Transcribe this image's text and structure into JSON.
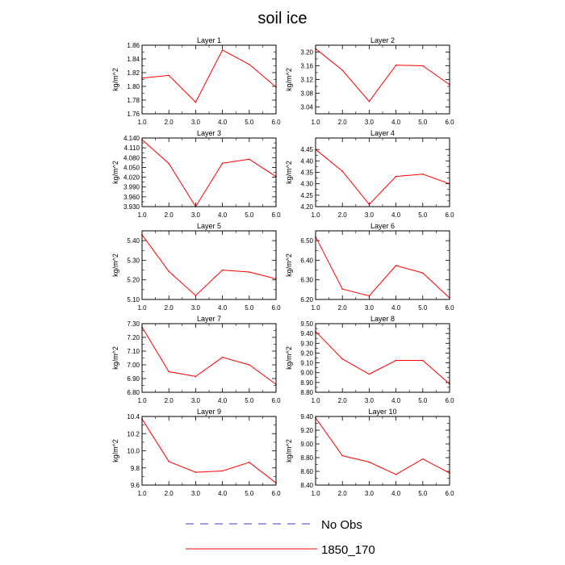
{
  "figure": {
    "title": "soil ice"
  },
  "legend": {
    "items": [
      {
        "label": "No Obs",
        "color": "#3b3bbf",
        "dashed": true
      },
      {
        "label": "1850_170",
        "color": "#ff0000",
        "dashed": false
      }
    ]
  },
  "chart_data": [
    {
      "type": "line",
      "title": "Layer 1",
      "ylabel": "kg/m^2",
      "x": [
        1.0,
        2.0,
        3.0,
        4.0,
        5.0,
        6.0
      ],
      "xlim": [
        1.0,
        6.0
      ],
      "xticks": [
        "1.0",
        "2.0",
        "3.0",
        "4.0",
        "5.0",
        "6.0"
      ],
      "ylim": [
        1.76,
        1.86
      ],
      "yticks": [
        "1.76",
        "1.78",
        "1.80",
        "1.82",
        "1.84",
        "1.86"
      ],
      "series": [
        {
          "name": "1850_170",
          "color": "#ff0000",
          "values": [
            1.812,
            1.816,
            1.777,
            1.853,
            1.832,
            1.799
          ]
        }
      ]
    },
    {
      "type": "line",
      "title": "Layer 2",
      "ylabel": "kg/m^2",
      "x": [
        1.0,
        2.0,
        3.0,
        4.0,
        5.0,
        6.0
      ],
      "xlim": [
        1.0,
        6.0
      ],
      "xticks": [
        "1.0",
        "2.0",
        "3.0",
        "4.0",
        "5.0",
        "6.0"
      ],
      "ylim": [
        3.02,
        3.22
      ],
      "yticks": [
        "3.04",
        "3.08",
        "3.12",
        "3.16",
        "3.20"
      ],
      "series": [
        {
          "name": "1850_170",
          "color": "#ff0000",
          "values": [
            3.21,
            3.147,
            3.056,
            3.162,
            3.16,
            3.105
          ]
        }
      ]
    },
    {
      "type": "line",
      "title": "Layer 3",
      "ylabel": "kg/m^2",
      "x": [
        1.0,
        2.0,
        3.0,
        4.0,
        5.0,
        6.0
      ],
      "xlim": [
        1.0,
        6.0
      ],
      "xticks": [
        "1.0",
        "2.0",
        "3.0",
        "4.0",
        "5.0",
        "6.0"
      ],
      "ylim": [
        3.93,
        4.14
      ],
      "yticks": [
        "3.930",
        "3.960",
        "3.990",
        "4.020",
        "4.050",
        "4.080",
        "4.110",
        "4.140"
      ],
      "series": [
        {
          "name": "1850_170",
          "color": "#ff0000",
          "values": [
            4.135,
            4.062,
            3.93,
            4.063,
            4.075,
            4.022
          ]
        }
      ]
    },
    {
      "type": "line",
      "title": "Layer 4",
      "ylabel": "kg/m^2",
      "x": [
        1.0,
        2.0,
        3.0,
        4.0,
        5.0,
        6.0
      ],
      "xlim": [
        1.0,
        6.0
      ],
      "xticks": [
        "1.0",
        "2.0",
        "3.0",
        "4.0",
        "5.0",
        "6.0"
      ],
      "ylim": [
        4.2,
        4.5
      ],
      "yticks": [
        "4.20",
        "4.25",
        "4.30",
        "4.35",
        "4.40",
        "4.45"
      ],
      "series": [
        {
          "name": "1850_170",
          "color": "#ff0000",
          "values": [
            4.45,
            4.355,
            4.21,
            4.332,
            4.342,
            4.3
          ]
        }
      ]
    },
    {
      "type": "line",
      "title": "Layer 5",
      "ylabel": "kg/m^2",
      "x": [
        1.0,
        2.0,
        3.0,
        4.0,
        5.0,
        6.0
      ],
      "xlim": [
        1.0,
        6.0
      ],
      "xticks": [
        "1.0",
        "2.0",
        "3.0",
        "4.0",
        "5.0",
        "6.0"
      ],
      "ylim": [
        5.1,
        5.45
      ],
      "yticks": [
        "5.10",
        "5.20",
        "5.30",
        "5.40"
      ],
      "series": [
        {
          "name": "1850_170",
          "color": "#ff0000",
          "values": [
            5.43,
            5.243,
            5.12,
            5.25,
            5.24,
            5.205
          ]
        }
      ]
    },
    {
      "type": "line",
      "title": "Layer 6",
      "ylabel": "kg/m^2",
      "x": [
        1.0,
        2.0,
        3.0,
        4.0,
        5.0,
        6.0
      ],
      "xlim": [
        1.0,
        6.0
      ],
      "xticks": [
        "1.0",
        "2.0",
        "3.0",
        "4.0",
        "5.0",
        "6.0"
      ],
      "ylim": [
        6.2,
        6.55
      ],
      "yticks": [
        "6.20",
        "6.30",
        "6.40",
        "6.50"
      ],
      "series": [
        {
          "name": "1850_170",
          "color": "#ff0000",
          "values": [
            6.52,
            6.253,
            6.218,
            6.373,
            6.335,
            6.208
          ]
        }
      ]
    },
    {
      "type": "line",
      "title": "Layer 7",
      "ylabel": "kg/m^2",
      "x": [
        1.0,
        2.0,
        3.0,
        4.0,
        5.0,
        6.0
      ],
      "xlim": [
        1.0,
        6.0
      ],
      "xticks": [
        "1.0",
        "2.0",
        "3.0",
        "4.0",
        "5.0",
        "6.0"
      ],
      "ylim": [
        6.8,
        7.3
      ],
      "yticks": [
        "6.80",
        "6.90",
        "7.00",
        "7.10",
        "7.20",
        "7.30"
      ],
      "series": [
        {
          "name": "1850_170",
          "color": "#ff0000",
          "values": [
            7.275,
            6.95,
            6.915,
            7.055,
            7.0,
            6.858
          ]
        }
      ]
    },
    {
      "type": "line",
      "title": "Layer 8",
      "ylabel": "kg/m^2",
      "x": [
        1.0,
        2.0,
        3.0,
        4.0,
        5.0,
        6.0
      ],
      "xlim": [
        1.0,
        6.0
      ],
      "xticks": [
        "1.0",
        "2.0",
        "3.0",
        "4.0",
        "5.0",
        "6.0"
      ],
      "ylim": [
        8.8,
        9.5
      ],
      "yticks": [
        "8.80",
        "8.90",
        "9.00",
        "9.10",
        "9.20",
        "9.30",
        "9.40",
        "9.50"
      ],
      "series": [
        {
          "name": "1850_170",
          "color": "#ff0000",
          "values": [
            9.42,
            9.14,
            8.985,
            9.125,
            9.125,
            8.885
          ]
        }
      ]
    },
    {
      "type": "line",
      "title": "Layer 9",
      "ylabel": "kg/m^2",
      "x": [
        1.0,
        2.0,
        3.0,
        4.0,
        5.0,
        6.0
      ],
      "xlim": [
        1.0,
        6.0
      ],
      "xticks": [
        "1.0",
        "2.0",
        "3.0",
        "4.0",
        "5.0",
        "6.0"
      ],
      "ylim": [
        9.6,
        10.4
      ],
      "yticks": [
        "9.6",
        "9.8",
        "10.0",
        "10.2",
        "10.4"
      ],
      "series": [
        {
          "name": "1850_170",
          "color": "#ff0000",
          "values": [
            10.37,
            9.875,
            9.75,
            9.765,
            9.865,
            9.625
          ]
        }
      ]
    },
    {
      "type": "line",
      "title": "Layer 10",
      "ylabel": "kg/m^2",
      "x": [
        1.0,
        2.0,
        3.0,
        4.0,
        5.0,
        6.0
      ],
      "xlim": [
        1.0,
        6.0
      ],
      "xticks": [
        "1.0",
        "2.0",
        "3.0",
        "4.0",
        "5.0",
        "6.0"
      ],
      "ylim": [
        8.4,
        9.4
      ],
      "yticks": [
        "8.40",
        "8.60",
        "8.80",
        "9.00",
        "9.20",
        "9.40"
      ],
      "series": [
        {
          "name": "1850_170",
          "color": "#ff0000",
          "values": [
            9.38,
            8.83,
            8.735,
            8.555,
            8.78,
            8.575
          ]
        }
      ]
    }
  ]
}
